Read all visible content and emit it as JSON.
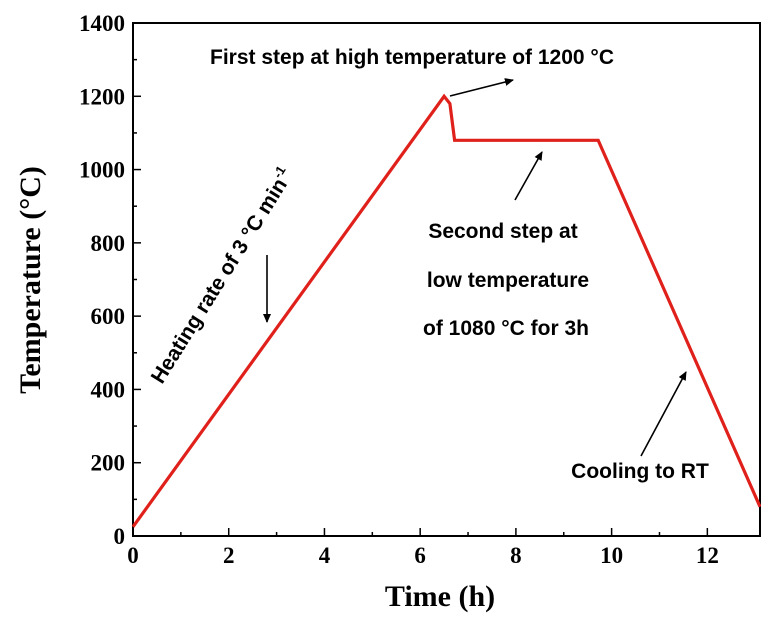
{
  "chart_data": {
    "type": "line",
    "xlabel": "Time (h)",
    "ylabel": "Temperature (°C)",
    "xlim": [
      0,
      13.1
    ],
    "ylim": [
      0,
      1400
    ],
    "x_ticks": [
      0,
      2,
      4,
      6,
      8,
      10,
      12
    ],
    "y_ticks": [
      0,
      200,
      400,
      600,
      800,
      1000,
      1200,
      1400
    ],
    "series": [
      {
        "color": "#e0201b",
        "points": [
          [
            0,
            25
          ],
          [
            6.5,
            1200
          ],
          [
            6.62,
            1180
          ],
          [
            6.72,
            1080
          ],
          [
            9.72,
            1080
          ],
          [
            13.1,
            80
          ]
        ]
      }
    ],
    "annotations": {
      "first_step": "First step at high temperature of 1200 °C",
      "heating_main": "Heating rate of 3 °C min",
      "heating_sup": "-1",
      "second_step": [
        "Second step at",
        "low temperature",
        "of 1080 °C for 3h"
      ],
      "cooling": "Cooling to RT"
    }
  }
}
